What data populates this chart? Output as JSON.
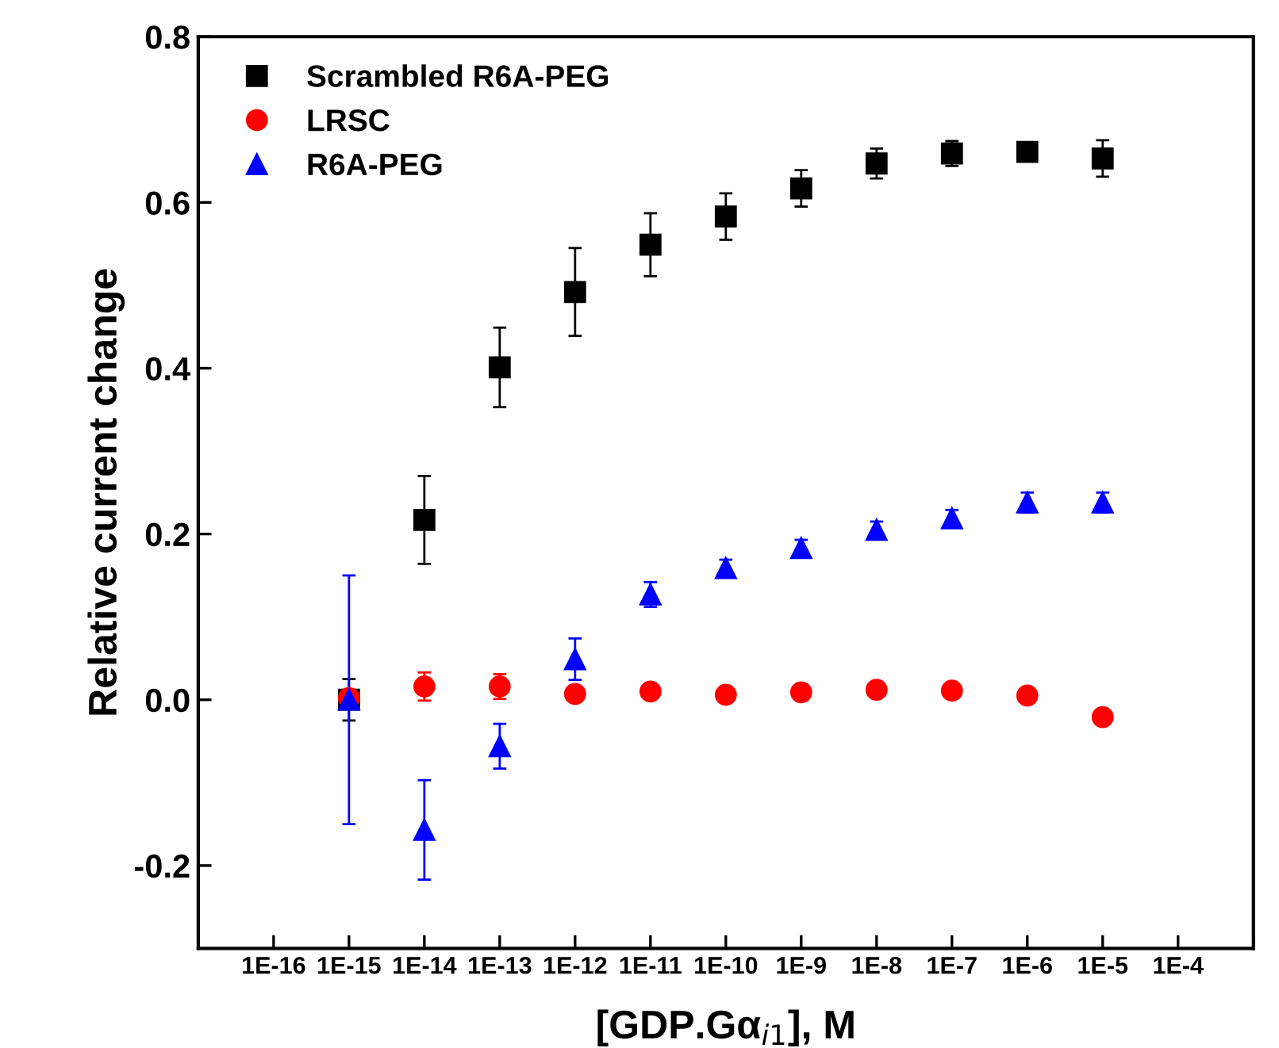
{
  "chart_data": {
    "type": "scatter",
    "xlabel": "[GDP.Gα$_{i1}$], M",
    "ylabel": "Relative current change",
    "log": "x",
    "grid": false,
    "legend": "top left",
    "xlim": [
      1e-17,
      0.001
    ],
    "ylim": [
      -0.3,
      0.8
    ],
    "xticks": [
      {
        "value": 1e-17,
        "label": null
      },
      {
        "value": 1e-16,
        "label": "1E-16"
      },
      {
        "value": 1e-15,
        "label": "1E-15"
      },
      {
        "value": 1e-14,
        "label": "1E-14"
      },
      {
        "value": 1e-13,
        "label": "1E-13"
      },
      {
        "value": 1e-12,
        "label": "1E-12"
      },
      {
        "value": 1e-11,
        "label": "1E-11"
      },
      {
        "value": 1e-10,
        "label": "1E-10"
      },
      {
        "value": 1e-09,
        "label": "1E-9"
      },
      {
        "value": 1e-08,
        "label": "1E-8"
      },
      {
        "value": 1e-07,
        "label": "1E-7"
      },
      {
        "value": 1e-06,
        "label": "1E-6"
      },
      {
        "value": 1e-05,
        "label": "1E-5"
      },
      {
        "value": 0.0001,
        "label": "1E-4"
      },
      {
        "value": 0.001,
        "label": null
      }
    ],
    "yticks": [
      {
        "value": -0.2,
        "label": "-0.2"
      },
      {
        "value": 0.0,
        "label": "0.0"
      },
      {
        "value": 0.2,
        "label": "0.2"
      },
      {
        "value": 0.4,
        "label": "0.4"
      },
      {
        "value": 0.6,
        "label": "0.6"
      },
      {
        "value": 0.8,
        "label": "0.8"
      }
    ],
    "x": [
      1e-15,
      1e-14,
      1e-13,
      1e-12,
      1e-11,
      1e-10,
      1e-09,
      1e-08,
      1e-07,
      1e-06,
      1e-05
    ],
    "series": [
      {
        "name": "Scrambled R6A-PEG",
        "color": "#000000",
        "marker": "square",
        "values": [
          0.0,
          0.217,
          0.401,
          0.492,
          0.549,
          0.583,
          0.617,
          0.647,
          0.659,
          0.661,
          0.653
        ],
        "errors": [
          0.025,
          0.053,
          0.048,
          0.053,
          0.038,
          0.028,
          0.022,
          0.018,
          0.015,
          0.005,
          0.022
        ]
      },
      {
        "name": "LRSC",
        "color": "#ff0000",
        "marker": "circle",
        "values": [
          0.002,
          0.016,
          0.016,
          0.007,
          0.01,
          0.006,
          0.009,
          0.012,
          0.011,
          0.005,
          -0.021
        ],
        "errors": [
          0.01,
          0.017,
          0.015,
          0.005,
          0.005,
          0.005,
          0.005,
          0.005,
          0.005,
          0.005,
          0.005
        ]
      },
      {
        "name": "R6A-PEG",
        "color": "#0000ff",
        "marker": "triangle",
        "values": [
          0.0,
          -0.157,
          -0.056,
          0.049,
          0.127,
          0.159,
          0.183,
          0.205,
          0.219,
          0.238,
          0.238
        ],
        "errors": [
          0.15,
          0.06,
          0.027,
          0.025,
          0.015,
          0.01,
          0.01,
          0.01,
          0.01,
          0.012,
          0.012
        ]
      }
    ]
  }
}
